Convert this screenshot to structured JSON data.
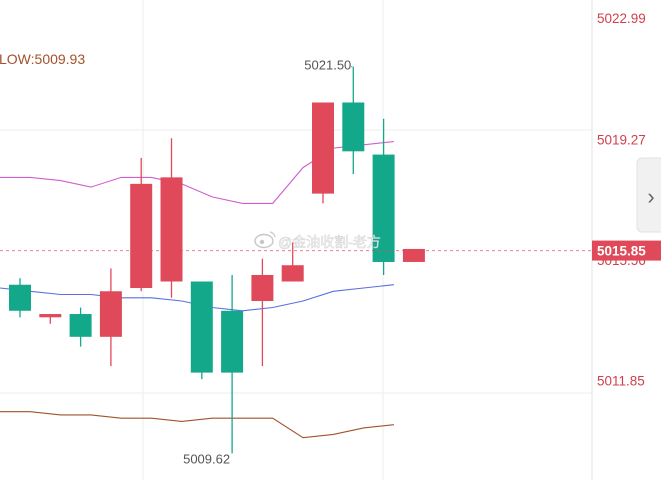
{
  "indicator_label": "LOW:5009.93",
  "watermark": "@金油收割-老方",
  "arrow_glyph": "›",
  "colors": {
    "up": "#e0495a",
    "down": "#14a88b",
    "ma_upper": "#d05fcf",
    "ma_mid": "#5a6fe0",
    "ma_low": "#a0522d",
    "axis_text": "#d0404c",
    "price_tag_bg": "#e0495a",
    "annotation": "#555555"
  },
  "chart_data": {
    "type": "candlestick",
    "y_range": [
      5008.8,
      5023.55
    ],
    "y_axis_ticks": [
      "5022.99",
      "5019.27",
      "5015.56",
      "5011.85"
    ],
    "last_price": "5015.85",
    "annotations": {
      "high": "5021.50",
      "low": "5009.62"
    },
    "candles": [
      {
        "open": 5014.8,
        "close": 5014.0,
        "high": 5015.0,
        "low": 5013.8
      },
      {
        "open": 5013.8,
        "close": 5013.9,
        "high": 5013.9,
        "low": 5013.6
      },
      {
        "open": 5013.9,
        "close": 5013.2,
        "high": 5014.1,
        "low": 5012.9
      },
      {
        "open": 5013.2,
        "close": 5014.6,
        "high": 5015.3,
        "low": 5012.3
      },
      {
        "open": 5014.7,
        "close": 5017.9,
        "high": 5018.7,
        "low": 5014.6
      },
      {
        "open": 5014.9,
        "close": 5018.1,
        "high": 5019.3,
        "low": 5014.4
      },
      {
        "open": 5014.9,
        "close": 5012.1,
        "high": 5014.9,
        "low": 5011.9
      },
      {
        "open": 5014.0,
        "close": 5012.1,
        "high": 5015.1,
        "low": 5009.62
      },
      {
        "open": 5014.3,
        "close": 5015.1,
        "high": 5015.6,
        "low": 5012.3
      },
      {
        "open": 5014.9,
        "close": 5015.4,
        "high": 5016.1,
        "low": 5014.9
      },
      {
        "open": 5017.6,
        "close": 5020.4,
        "high": 5020.4,
        "low": 5017.3
      },
      {
        "open": 5020.4,
        "close": 5018.9,
        "high": 5021.5,
        "low": 5018.2
      },
      {
        "open": 5018.8,
        "close": 5015.5,
        "high": 5019.9,
        "low": 5015.1
      },
      {
        "open": 5015.5,
        "close": 5015.9,
        "high": 5015.9,
        "low": 5015.5
      }
    ],
    "ma_upper": [
      5018.1,
      5018.1,
      5018.0,
      5017.8,
      5018.1,
      5018.1,
      5017.9,
      5017.5,
      5017.3,
      5017.3,
      5018.4,
      5019.0,
      5019.1,
      5019.2
    ],
    "ma_mid": [
      5014.7,
      5014.6,
      5014.5,
      5014.5,
      5014.4,
      5014.4,
      5014.3,
      5014.1,
      5014.0,
      5014.1,
      5014.3,
      5014.6,
      5014.7,
      5014.8
    ],
    "ma_low": [
      5010.9,
      5010.9,
      5010.8,
      5010.8,
      5010.7,
      5010.7,
      5010.6,
      5010.7,
      5010.7,
      5010.7,
      5010.1,
      5010.2,
      5010.4,
      5010.5
    ]
  }
}
